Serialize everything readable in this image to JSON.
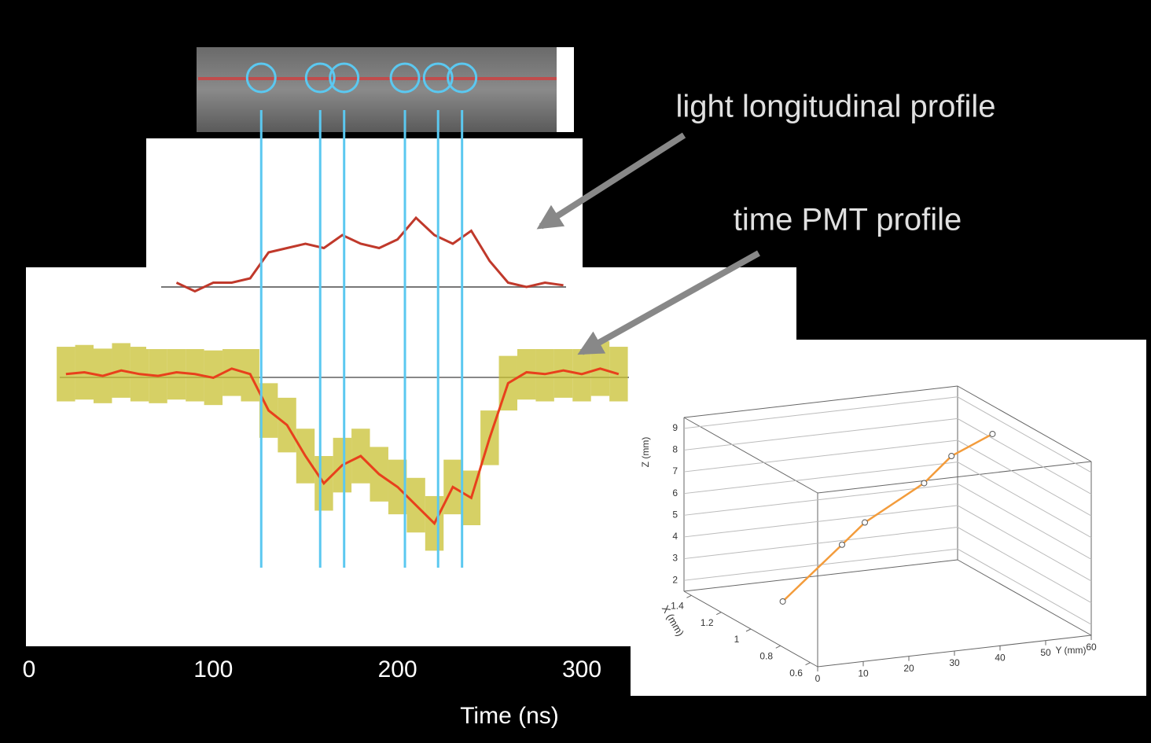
{
  "chart_data": [
    {
      "type": "line",
      "annotation": "time PMT profile",
      "xlabel": "Time (ns)",
      "x": [
        20,
        30,
        40,
        50,
        60,
        70,
        80,
        90,
        100,
        110,
        120,
        130,
        140,
        150,
        160,
        170,
        180,
        190,
        200,
        210,
        220,
        230,
        240,
        250,
        260,
        270,
        280,
        290,
        300,
        310,
        320
      ],
      "values": [
        0,
        0.01,
        -0.01,
        0.02,
        0,
        -0.01,
        0.01,
        0,
        -0.02,
        0.03,
        0,
        -0.2,
        -0.28,
        -0.45,
        -0.6,
        -0.5,
        -0.45,
        -0.55,
        -0.62,
        -0.72,
        -0.82,
        -0.62,
        -0.68,
        -0.35,
        -0.05,
        0.01,
        0,
        0.02,
        0,
        0.03,
        0
      ],
      "errors": [
        0.15,
        0.15,
        0.15,
        0.15,
        0.15,
        0.15,
        0.15,
        0.15,
        0.15,
        0.15,
        0.15,
        0.15,
        0.15,
        0.15,
        0.15,
        0.15,
        0.15,
        0.15,
        0.15,
        0.15,
        0.15,
        0.15,
        0.15,
        0.15,
        0.15,
        0.15,
        0.15,
        0.15,
        0.15,
        0.15,
        0.15
      ],
      "color": "#e8401c",
      "error_color": "#c8c032",
      "xlim": [
        0,
        300
      ],
      "xticks": [
        0,
        100,
        200,
        300
      ],
      "ylim": [
        -1.4,
        0.5
      ],
      "markers": [
        126,
        158,
        171,
        204,
        222,
        235
      ],
      "marker_color": "#5bc8f0"
    },
    {
      "type": "line",
      "annotation": "light longitudinal profile",
      "x": [
        80,
        90,
        100,
        110,
        120,
        130,
        140,
        150,
        160,
        170,
        180,
        190,
        200,
        210,
        220,
        230,
        240,
        250,
        260,
        270,
        280,
        290
      ],
      "values": [
        0.05,
        -0.05,
        0.05,
        0.05,
        0.1,
        0.4,
        0.45,
        0.5,
        0.45,
        0.6,
        0.5,
        0.45,
        0.55,
        0.8,
        0.6,
        0.5,
        0.65,
        0.3,
        0.05,
        0,
        0.05,
        0.02
      ],
      "color": "#c0392b",
      "xlim": [
        0,
        300
      ],
      "ylim": [
        -0.5,
        1.5
      ]
    },
    {
      "type": "line3d",
      "xlabel": "X (mm)",
      "ylabel": "Y (mm)",
      "zlabel": "Z (mm)",
      "x": [
        1,
        1,
        1,
        1,
        1,
        1
      ],
      "y": [
        7,
        20,
        25,
        38,
        44,
        53
      ],
      "z": [
        2.6,
        4.9,
        5.8,
        7.3,
        8.4,
        9.2
      ],
      "color": "#f39c3c",
      "xlim": [
        0.55,
        1.45
      ],
      "ylim": [
        0,
        60
      ],
      "zlim": [
        1.5,
        9.5
      ],
      "xticks": [
        0.6,
        0.8,
        1,
        1.2,
        1.4
      ],
      "yticks": [
        0,
        10,
        20,
        30,
        40,
        50,
        60
      ],
      "zticks": [
        2,
        3,
        4,
        5,
        6,
        7,
        8,
        9
      ]
    }
  ]
}
